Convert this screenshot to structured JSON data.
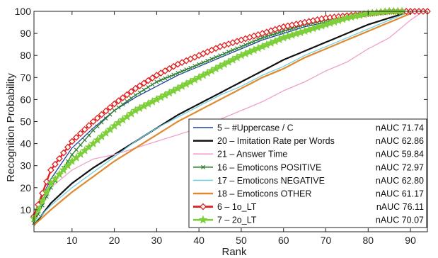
{
  "chart_data": {
    "type": "line",
    "title": "",
    "xlabel": "Rank",
    "ylabel": "Recognition Probability",
    "xlim": [
      1,
      94
    ],
    "ylim": [
      0,
      100
    ],
    "x_ticks": [
      10,
      20,
      30,
      40,
      50,
      60,
      70,
      80,
      90
    ],
    "y_ticks": [
      10,
      20,
      30,
      40,
      50,
      60,
      70,
      80,
      90,
      100
    ],
    "grid": false,
    "legend_position": "bottom-right",
    "series": [
      {
        "name": "5 – #Uppercase / C",
        "nauc_label": "nAUC 71.74",
        "color": "#1f3fa8",
        "marker": "none",
        "width": 1.3,
        "x": [
          1,
          5,
          10,
          15,
          20,
          25,
          30,
          35,
          40,
          45,
          50,
          55,
          60,
          65,
          70,
          75,
          80,
          85,
          90
        ],
        "y": [
          8,
          24,
          38,
          47,
          55,
          61,
          66,
          71,
          75,
          79,
          83,
          87,
          90,
          93,
          95,
          97,
          99,
          100,
          100
        ]
      },
      {
        "name": "20 – Imitation Rate per Words",
        "nauc_label": "nAUC 62.86",
        "color": "#111111",
        "marker": "none",
        "width": 2.2,
        "x": [
          1,
          5,
          10,
          15,
          20,
          25,
          30,
          35,
          40,
          45,
          50,
          55,
          60,
          65,
          70,
          75,
          80,
          85,
          90
        ],
        "y": [
          3,
          13,
          22,
          29,
          35,
          41,
          47,
          53,
          58,
          63,
          68,
          73,
          78,
          82,
          86,
          90,
          94,
          97,
          100
        ]
      },
      {
        "name": "21 – Answer Time",
        "nauc_label": "nAUC 59.84",
        "color": "#f0a0cc",
        "marker": "none",
        "width": 1.3,
        "x": [
          1,
          5,
          10,
          15,
          20,
          25,
          30,
          35,
          40,
          45,
          50,
          55,
          60,
          65,
          70,
          75,
          80,
          85,
          90,
          93
        ],
        "y": [
          8,
          20,
          28,
          33,
          35,
          38,
          41,
          44,
          47,
          51,
          55,
          59,
          64,
          68,
          73,
          77,
          83,
          88,
          96,
          100
        ]
      },
      {
        "name": "16 – Emoticons POSITIVE",
        "nauc_label": "nAUC 72.97",
        "color": "#2e7d32",
        "marker": "x",
        "width": 1.3,
        "x": [
          1,
          5,
          10,
          15,
          20,
          25,
          30,
          35,
          40,
          45,
          50,
          55,
          60,
          65,
          70,
          75,
          80,
          85
        ],
        "y": [
          4,
          20,
          35,
          46,
          55,
          62,
          68,
          72,
          76,
          80,
          84,
          88,
          91,
          94,
          96,
          98,
          99,
          100
        ]
      },
      {
        "name": "17 – Emoticons NEGATIVE",
        "nauc_label": "nAUC 62.80",
        "color": "#6fd0e0",
        "marker": "none",
        "width": 1.3,
        "x": [
          1,
          5,
          10,
          15,
          20,
          25,
          30,
          35,
          40,
          45,
          50,
          55,
          60,
          65,
          70,
          75,
          80,
          85,
          90
        ],
        "y": [
          4,
          12,
          20,
          27,
          34,
          41,
          47,
          52,
          57,
          62,
          66,
          71,
          75,
          80,
          84,
          88,
          92,
          96,
          100
        ]
      },
      {
        "name": "18 – Emoticons OTHER",
        "nauc_label": "nAUC 61.17",
        "color": "#e08a30",
        "marker": "none",
        "width": 2.2,
        "x": [
          1,
          5,
          10,
          15,
          20,
          25,
          30,
          35,
          40,
          45,
          50,
          55,
          60,
          65,
          70,
          75,
          80,
          85,
          90
        ],
        "y": [
          3,
          10,
          18,
          25,
          32,
          38,
          44,
          50,
          55,
          60,
          65,
          70,
          74,
          79,
          83,
          87,
          91,
          95,
          99
        ]
      },
      {
        "name": "6 – 1o_LT",
        "nauc_label": "nAUC 76.11",
        "color": "#e02020",
        "marker": "diamond",
        "width": 2.4,
        "x": [
          1,
          5,
          10,
          15,
          20,
          25,
          30,
          35,
          40,
          45,
          50,
          55,
          60,
          65,
          70,
          75,
          80,
          85,
          90,
          94
        ],
        "y": [
          7,
          28,
          41,
          50,
          58,
          65,
          71,
          76,
          80,
          84,
          87,
          90,
          93,
          95,
          97,
          98,
          99,
          100,
          100,
          100
        ]
      },
      {
        "name": "7 – 2o_LT",
        "nauc_label": "nAUC 70.07",
        "color": "#7dcf3a",
        "marker": "star",
        "width": 2.4,
        "x": [
          1,
          5,
          10,
          15,
          20,
          25,
          30,
          35,
          40,
          45,
          50,
          55,
          60,
          65,
          70,
          75,
          80,
          85,
          88
        ],
        "y": [
          6,
          22,
          32,
          40,
          48,
          55,
          60,
          65,
          70,
          75,
          80,
          84,
          88,
          91,
          94,
          97,
          99,
          100,
          100
        ]
      }
    ]
  }
}
